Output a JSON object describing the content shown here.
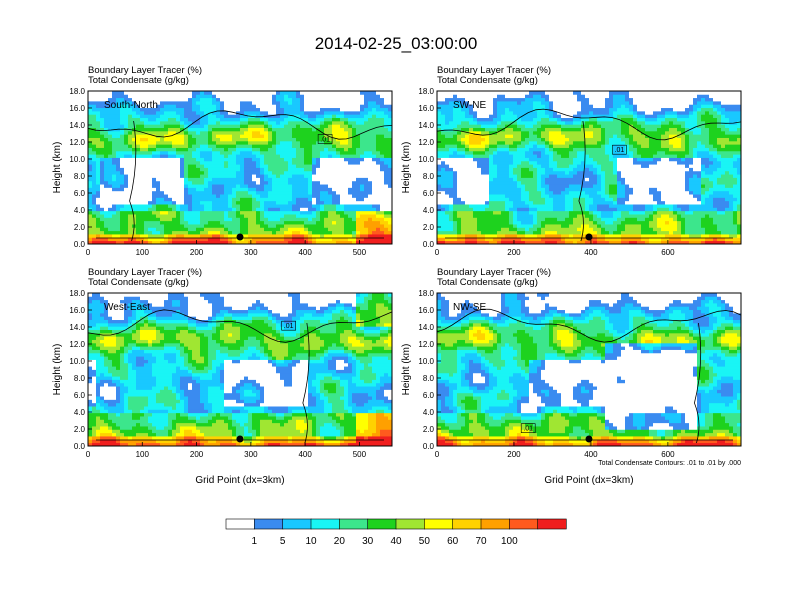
{
  "chart_data": {
    "type": "heatmap",
    "title": "2014-02-25_03:00:00",
    "subtitle_line1": "Boundary Layer Tracer   (%)",
    "subtitle_line2": "Total Condensate   (g/kg)",
    "colorbar": {
      "levels": [
        "1",
        "5",
        "10",
        "20",
        "30",
        "40",
        "50",
        "60",
        "70",
        "100"
      ],
      "colors": [
        "#ffffff",
        "#3a8bf0",
        "#19c8ff",
        "#19f5f5",
        "#3ce68c",
        "#1ed21e",
        "#a0e632",
        "#ffff00",
        "#ffd200",
        "#ffa000",
        "#ff5a1e",
        "#f01e1e"
      ]
    },
    "y_axis": {
      "label": "Height (km)",
      "range": [
        0,
        18
      ],
      "ticks": [
        "0.0",
        "2.0",
        "4.0",
        "6.0",
        "8.0",
        "10.0",
        "12.0",
        "14.0",
        "16.0",
        "18.0"
      ]
    },
    "x_axis_label": "Grid Point (dx=3km)",
    "contour_note": "Total Condensate Contours: .01 to .01 by .000",
    "contour_label": ".01",
    "panels": [
      {
        "name": "South-North",
        "xlim": [
          0,
          560
        ],
        "xticks": [
          "0",
          "100",
          "200",
          "300",
          "400",
          "500"
        ],
        "marker_x": 280
      },
      {
        "name": "SW-NE",
        "xlim": [
          0,
          790
        ],
        "xticks": [
          "0",
          "200",
          "400",
          "600"
        ],
        "marker_x": 395
      },
      {
        "name": "West-East",
        "xlim": [
          0,
          560
        ],
        "xticks": [
          "0",
          "100",
          "200",
          "300",
          "400",
          "500"
        ],
        "marker_x": 280
      },
      {
        "name": "NW-SE",
        "xlim": [
          0,
          790
        ],
        "xticks": [
          "0",
          "200",
          "400",
          "600"
        ],
        "marker_x": 395
      }
    ]
  }
}
